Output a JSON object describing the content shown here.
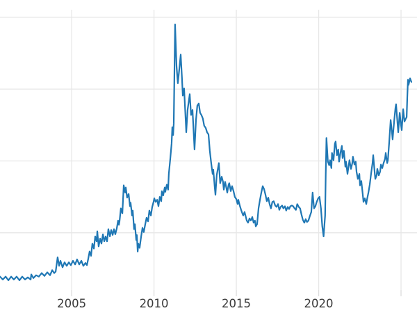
{
  "chart_data": {
    "type": "line",
    "title": "",
    "xlabel": "",
    "ylabel": "",
    "grid": true,
    "legend": "none",
    "xlim": [
      2000.65,
      2025.97
    ],
    "ylim": [
      -1.16,
      42.4
    ],
    "x_ticks": [
      {
        "year": 2005,
        "label": "2005"
      },
      {
        "year": 2010,
        "label": "2010"
      },
      {
        "year": 2015,
        "label": "2015"
      },
      {
        "year": 2020,
        "label": "2020"
      },
      {
        "year": 2025,
        "label": ""
      }
    ],
    "y_gridline_values": [
      10,
      20,
      30,
      40
    ],
    "colors": {
      "line": "#1f77b4",
      "grid": "#e7e7e7",
      "tick": "#dcdcdc",
      "tick_label": "#3a3a3a",
      "background": "#ffffff"
    },
    "series": [
      {
        "name": "price",
        "points": [
          [
            2000.65,
            3.9
          ],
          [
            2000.82,
            3.5
          ],
          [
            2000.99,
            3.9
          ],
          [
            2001.16,
            3.4
          ],
          [
            2001.33,
            3.9
          ],
          [
            2001.49,
            3.5
          ],
          [
            2001.66,
            3.9
          ],
          [
            2001.83,
            3.4
          ],
          [
            2002.0,
            3.9
          ],
          [
            2002.17,
            3.5
          ],
          [
            2002.34,
            3.8
          ],
          [
            2002.51,
            3.5
          ],
          [
            2002.55,
            4.2
          ],
          [
            2002.68,
            3.7
          ],
          [
            2002.84,
            4.1
          ],
          [
            2003.01,
            3.9
          ],
          [
            2003.18,
            4.4
          ],
          [
            2003.35,
            4.0
          ],
          [
            2003.52,
            4.5
          ],
          [
            2003.69,
            4.1
          ],
          [
            2003.82,
            4.8
          ],
          [
            2003.94,
            4.4
          ],
          [
            2004.03,
            4.6
          ],
          [
            2004.15,
            6.6
          ],
          [
            2004.24,
            5.4
          ],
          [
            2004.32,
            6.1
          ],
          [
            2004.45,
            5.2
          ],
          [
            2004.57,
            5.9
          ],
          [
            2004.7,
            5.4
          ],
          [
            2004.83,
            5.9
          ],
          [
            2004.95,
            5.5
          ],
          [
            2005.08,
            6.1
          ],
          [
            2005.21,
            5.6
          ],
          [
            2005.33,
            6.3
          ],
          [
            2005.46,
            5.6
          ],
          [
            2005.59,
            6.1
          ],
          [
            2005.71,
            5.4
          ],
          [
            2005.84,
            5.8
          ],
          [
            2005.93,
            5.5
          ],
          [
            2006.01,
            6.4
          ],
          [
            2006.09,
            7.4
          ],
          [
            2006.18,
            6.8
          ],
          [
            2006.26,
            8.5
          ],
          [
            2006.35,
            7.8
          ],
          [
            2006.43,
            9.5
          ],
          [
            2006.52,
            8.8
          ],
          [
            2006.56,
            10.2
          ],
          [
            2006.64,
            8.1
          ],
          [
            2006.73,
            9.2
          ],
          [
            2006.81,
            8.5
          ],
          [
            2006.9,
            9.8
          ],
          [
            2006.98,
            8.8
          ],
          [
            2007.06,
            9.5
          ],
          [
            2007.15,
            8.8
          ],
          [
            2007.23,
            10.5
          ],
          [
            2007.32,
            9.5
          ],
          [
            2007.4,
            10.4
          ],
          [
            2007.49,
            9.7
          ],
          [
            2007.57,
            10.5
          ],
          [
            2007.65,
            9.8
          ],
          [
            2007.74,
            10.6
          ],
          [
            2007.82,
            11.7
          ],
          [
            2007.87,
            11.1
          ],
          [
            2007.91,
            11.6
          ],
          [
            2007.99,
            13.4
          ],
          [
            2008.08,
            12.7
          ],
          [
            2008.16,
            16.6
          ],
          [
            2008.25,
            15.6
          ],
          [
            2008.29,
            16.3
          ],
          [
            2008.37,
            14.9
          ],
          [
            2008.46,
            15.4
          ],
          [
            2008.54,
            13.7
          ],
          [
            2008.58,
            14.2
          ],
          [
            2008.67,
            12.4
          ],
          [
            2008.71,
            13.1
          ],
          [
            2008.79,
            10.5
          ],
          [
            2008.84,
            11.2
          ],
          [
            2008.92,
            9.0
          ],
          [
            2008.96,
            9.7
          ],
          [
            2009.01,
            7.4
          ],
          [
            2009.05,
            8.5
          ],
          [
            2009.13,
            7.9
          ],
          [
            2009.22,
            9.5
          ],
          [
            2009.3,
            10.7
          ],
          [
            2009.38,
            10.1
          ],
          [
            2009.47,
            11.2
          ],
          [
            2009.55,
            12.1
          ],
          [
            2009.64,
            11.6
          ],
          [
            2009.72,
            13.1
          ],
          [
            2009.81,
            12.4
          ],
          [
            2009.89,
            13.6
          ],
          [
            2009.97,
            14.3
          ],
          [
            2010.02,
            14.8
          ],
          [
            2010.1,
            14.3
          ],
          [
            2010.19,
            14.6
          ],
          [
            2010.27,
            13.7
          ],
          [
            2010.35,
            15.0
          ],
          [
            2010.44,
            14.4
          ],
          [
            2010.48,
            15.8
          ],
          [
            2010.56,
            15.2
          ],
          [
            2010.65,
            16.3
          ],
          [
            2010.69,
            15.7
          ],
          [
            2010.78,
            16.7
          ],
          [
            2010.86,
            16.0
          ],
          [
            2010.9,
            18.2
          ],
          [
            2010.99,
            20.3
          ],
          [
            2011.07,
            22.4
          ],
          [
            2011.11,
            24.7
          ],
          [
            2011.16,
            23.6
          ],
          [
            2011.2,
            25.2
          ],
          [
            2011.28,
            39.0
          ],
          [
            2011.37,
            33.2
          ],
          [
            2011.45,
            30.8
          ],
          [
            2011.54,
            32.9
          ],
          [
            2011.62,
            34.8
          ],
          [
            2011.7,
            31.6
          ],
          [
            2011.75,
            29.1
          ],
          [
            2011.83,
            30.1
          ],
          [
            2011.96,
            24.0
          ],
          [
            2012.04,
            27.1
          ],
          [
            2012.17,
            29.3
          ],
          [
            2012.25,
            26.4
          ],
          [
            2012.34,
            27.1
          ],
          [
            2012.46,
            21.6
          ],
          [
            2012.55,
            25.7
          ],
          [
            2012.63,
            27.7
          ],
          [
            2012.72,
            28.0
          ],
          [
            2012.8,
            26.7
          ],
          [
            2012.88,
            26.4
          ],
          [
            2012.97,
            25.9
          ],
          [
            2013.05,
            24.9
          ],
          [
            2013.14,
            24.6
          ],
          [
            2013.22,
            24.0
          ],
          [
            2013.31,
            23.7
          ],
          [
            2013.39,
            21.4
          ],
          [
            2013.48,
            19.6
          ],
          [
            2013.56,
            18.2
          ],
          [
            2013.6,
            18.8
          ],
          [
            2013.69,
            16.3
          ],
          [
            2013.73,
            15.3
          ],
          [
            2013.81,
            18.0
          ],
          [
            2013.9,
            19.2
          ],
          [
            2013.94,
            19.7
          ],
          [
            2014.02,
            16.9
          ],
          [
            2014.11,
            17.8
          ],
          [
            2014.19,
            17.1
          ],
          [
            2014.24,
            16.0
          ],
          [
            2014.32,
            17.1
          ],
          [
            2014.4,
            16.2
          ],
          [
            2014.45,
            15.6
          ],
          [
            2014.53,
            16.7
          ],
          [
            2014.57,
            16.9
          ],
          [
            2014.66,
            15.8
          ],
          [
            2014.74,
            16.5
          ],
          [
            2014.83,
            15.8
          ],
          [
            2014.91,
            15.0
          ],
          [
            2015.0,
            14.7
          ],
          [
            2015.08,
            14.0
          ],
          [
            2015.12,
            14.6
          ],
          [
            2015.21,
            13.8
          ],
          [
            2015.29,
            13.2
          ],
          [
            2015.38,
            12.6
          ],
          [
            2015.42,
            12.4
          ],
          [
            2015.5,
            12.9
          ],
          [
            2015.59,
            12.1
          ],
          [
            2015.63,
            11.7
          ],
          [
            2015.71,
            11.4
          ],
          [
            2015.8,
            12.0
          ],
          [
            2015.88,
            11.7
          ],
          [
            2015.97,
            12.2
          ],
          [
            2016.05,
            11.4
          ],
          [
            2016.13,
            11.7
          ],
          [
            2016.18,
            10.9
          ],
          [
            2016.26,
            11.2
          ],
          [
            2016.35,
            13.4
          ],
          [
            2016.43,
            14.5
          ],
          [
            2016.51,
            15.5
          ],
          [
            2016.6,
            16.5
          ],
          [
            2016.68,
            16.1
          ],
          [
            2016.77,
            15.3
          ],
          [
            2016.85,
            14.4
          ],
          [
            2016.94,
            14.9
          ],
          [
            2017.02,
            14.0
          ],
          [
            2017.1,
            13.4
          ],
          [
            2017.19,
            14.3
          ],
          [
            2017.27,
            14.4
          ],
          [
            2017.36,
            13.8
          ],
          [
            2017.44,
            13.6
          ],
          [
            2017.53,
            14.0
          ],
          [
            2017.61,
            13.2
          ],
          [
            2017.69,
            13.6
          ],
          [
            2017.78,
            13.8
          ],
          [
            2017.86,
            13.4
          ],
          [
            2017.95,
            13.7
          ],
          [
            2018.03,
            13.1
          ],
          [
            2018.12,
            13.6
          ],
          [
            2018.2,
            13.3
          ],
          [
            2018.28,
            13.7
          ],
          [
            2018.37,
            13.8
          ],
          [
            2018.45,
            13.7
          ],
          [
            2018.54,
            13.4
          ],
          [
            2018.62,
            13.2
          ],
          [
            2018.7,
            14.0
          ],
          [
            2018.79,
            13.6
          ],
          [
            2018.87,
            13.4
          ],
          [
            2018.96,
            12.5
          ],
          [
            2019.04,
            11.8
          ],
          [
            2019.13,
            11.4
          ],
          [
            2019.21,
            11.9
          ],
          [
            2019.29,
            11.5
          ],
          [
            2019.38,
            11.7
          ],
          [
            2019.46,
            12.3
          ],
          [
            2019.55,
            12.9
          ],
          [
            2019.63,
            15.6
          ],
          [
            2019.72,
            13.4
          ],
          [
            2019.8,
            13.7
          ],
          [
            2019.88,
            14.3
          ],
          [
            2019.97,
            14.8
          ],
          [
            2020.05,
            15.0
          ],
          [
            2020.14,
            13.4
          ],
          [
            2020.22,
            10.9
          ],
          [
            2020.3,
            9.5
          ],
          [
            2020.39,
            12.4
          ],
          [
            2020.43,
            18.2
          ],
          [
            2020.47,
            23.2
          ],
          [
            2020.56,
            19.9
          ],
          [
            2020.64,
            19.4
          ],
          [
            2020.69,
            20.1
          ],
          [
            2020.77,
            19.0
          ],
          [
            2020.81,
            21.1
          ],
          [
            2020.9,
            20.1
          ],
          [
            2020.98,
            22.4
          ],
          [
            2021.03,
            22.7
          ],
          [
            2021.11,
            20.8
          ],
          [
            2021.19,
            21.6
          ],
          [
            2021.24,
            19.9
          ],
          [
            2021.32,
            21.1
          ],
          [
            2021.41,
            22.1
          ],
          [
            2021.45,
            20.4
          ],
          [
            2021.53,
            21.4
          ],
          [
            2021.62,
            19.2
          ],
          [
            2021.66,
            19.9
          ],
          [
            2021.75,
            18.2
          ],
          [
            2021.83,
            19.5
          ],
          [
            2021.87,
            20.1
          ],
          [
            2021.96,
            18.9
          ],
          [
            2022.04,
            19.7
          ],
          [
            2022.08,
            20.6
          ],
          [
            2022.17,
            19.5
          ],
          [
            2022.25,
            19.9
          ],
          [
            2022.3,
            18.5
          ],
          [
            2022.38,
            17.5
          ],
          [
            2022.47,
            18.2
          ],
          [
            2022.51,
            16.6
          ],
          [
            2022.59,
            17.2
          ],
          [
            2022.68,
            15.3
          ],
          [
            2022.72,
            14.3
          ],
          [
            2022.8,
            14.8
          ],
          [
            2022.89,
            14.0
          ],
          [
            2022.93,
            14.6
          ],
          [
            2023.02,
            15.6
          ],
          [
            2023.1,
            16.7
          ],
          [
            2023.18,
            18.2
          ],
          [
            2023.27,
            19.7
          ],
          [
            2023.31,
            20.8
          ],
          [
            2023.4,
            18.4
          ],
          [
            2023.44,
            17.5
          ],
          [
            2023.52,
            18.0
          ],
          [
            2023.56,
            18.9
          ],
          [
            2023.65,
            18.0
          ],
          [
            2023.73,
            18.5
          ],
          [
            2023.78,
            19.5
          ],
          [
            2023.86,
            19.0
          ],
          [
            2023.94,
            19.7
          ],
          [
            2024.03,
            20.3
          ],
          [
            2024.07,
            21.1
          ],
          [
            2024.16,
            19.7
          ],
          [
            2024.2,
            20.1
          ],
          [
            2024.28,
            22.6
          ],
          [
            2024.37,
            25.7
          ],
          [
            2024.45,
            24.0
          ],
          [
            2024.49,
            23.0
          ],
          [
            2024.58,
            25.5
          ],
          [
            2024.66,
            27.4
          ],
          [
            2024.7,
            27.9
          ],
          [
            2024.79,
            25.2
          ],
          [
            2024.83,
            24.0
          ],
          [
            2024.92,
            26.7
          ],
          [
            2025.0,
            25.0
          ],
          [
            2025.04,
            24.3
          ],
          [
            2025.13,
            27.2
          ],
          [
            2025.21,
            25.5
          ],
          [
            2025.29,
            25.9
          ],
          [
            2025.34,
            26.1
          ],
          [
            2025.38,
            28.8
          ],
          [
            2025.42,
            31.3
          ],
          [
            2025.46,
            30.6
          ],
          [
            2025.55,
            31.5
          ],
          [
            2025.63,
            31.0
          ]
        ]
      }
    ]
  }
}
